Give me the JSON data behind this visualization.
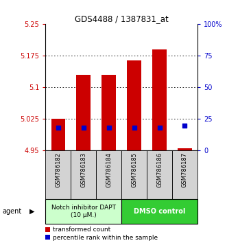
{
  "title": "GDS4488 / 1387831_at",
  "samples": [
    "GSM786182",
    "GSM786183",
    "GSM786184",
    "GSM786185",
    "GSM786186",
    "GSM786187"
  ],
  "red_values": [
    5.025,
    5.13,
    5.13,
    5.165,
    5.19,
    4.955
  ],
  "blue_values": [
    5.005,
    5.005,
    5.005,
    5.005,
    5.005,
    5.01
  ],
  "ylim_left": [
    4.95,
    5.25
  ],
  "ylim_right": [
    0,
    100
  ],
  "yticks_left": [
    4.95,
    5.025,
    5.1,
    5.175,
    5.25
  ],
  "yticks_right": [
    0,
    25,
    50,
    75,
    100
  ],
  "ytick_labels_left": [
    "4.95",
    "5.025",
    "5.1",
    "5.175",
    "5.25"
  ],
  "ytick_labels_right": [
    "0",
    "25",
    "50",
    "75",
    "100%"
  ],
  "grid_values": [
    5.025,
    5.1,
    5.175
  ],
  "group1_label": "Notch inhibitor DAPT\n(10 μM.)",
  "group2_label": "DMSO control",
  "group1_indices": [
    0,
    1,
    2
  ],
  "group2_indices": [
    3,
    4,
    5
  ],
  "group1_color": "#ccffcc",
  "group2_color": "#33cc33",
  "legend_red": "transformed count",
  "legend_blue": "percentile rank within the sample",
  "bar_bottom": 4.95,
  "bar_width": 0.55,
  "red_color": "#cc0000",
  "blue_color": "#0000cc",
  "label_color_left": "#cc0000",
  "label_color_right": "#0000cc"
}
